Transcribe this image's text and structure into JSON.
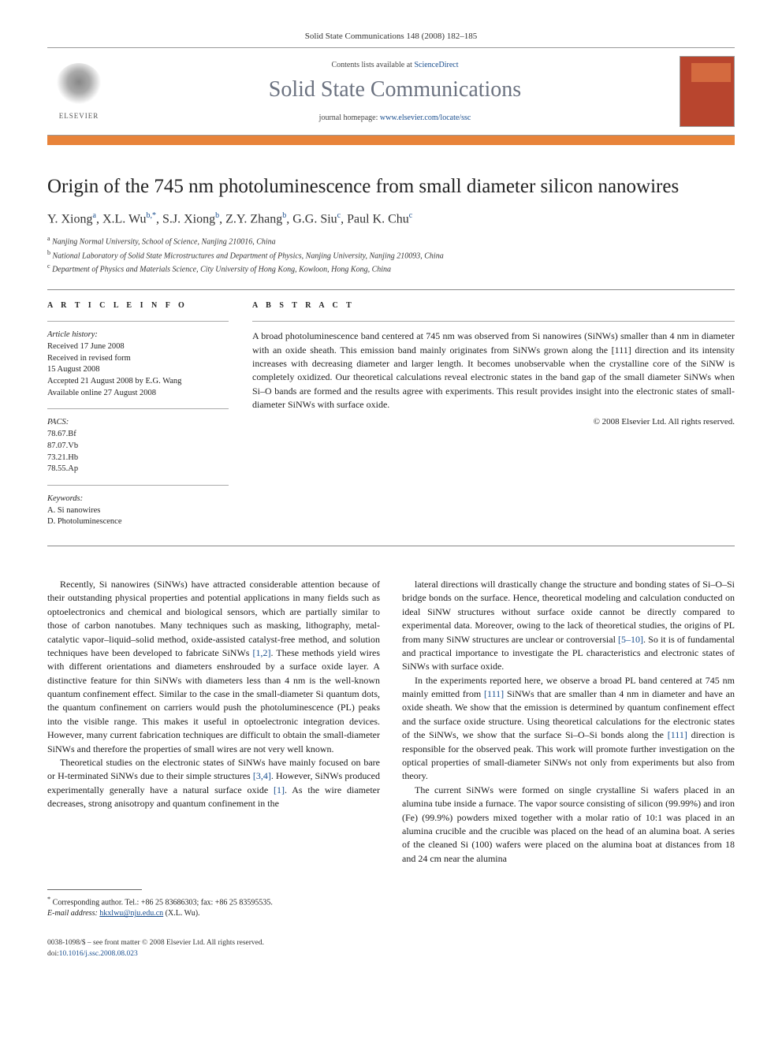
{
  "header": {
    "citation": "Solid State Communications 148 (2008) 182–185",
    "contents_prefix": "Contents lists available at ",
    "contents_link": "ScienceDirect",
    "journal_name": "Solid State Communications",
    "homepage_prefix": "journal homepage: ",
    "homepage_link": "www.elsevier.com/locate/ssc",
    "elsevier_label": "ELSEVIER"
  },
  "title": "Origin of the 745 nm photoluminescence from small diameter silicon nanowires",
  "authors_html": "Y. Xiong<sup>a</sup>, X.L. Wu<sup>b,*</sup>, S.J. Xiong<sup>b</sup>, Z.Y. Zhang<sup>b</sup>, G.G. Siu<sup>c</sup>, Paul K. Chu<sup>c</sup>",
  "affiliations": [
    {
      "sup": "a",
      "text": "Nanjing Normal University, School of Science, Nanjing 210016, China"
    },
    {
      "sup": "b",
      "text": "National Laboratory of Solid State Microstructures and Department of Physics, Nanjing University, Nanjing 210093, China"
    },
    {
      "sup": "c",
      "text": "Department of Physics and Materials Science, City University of Hong Kong, Kowloon, Hong Kong, China"
    }
  ],
  "article_info": {
    "heading": "A R T I C L E   I N F O",
    "history_label": "Article history:",
    "history": [
      "Received 17 June 2008",
      "Received in revised form",
      "15 August 2008",
      "Accepted 21 August 2008 by E.G. Wang",
      "Available online 27 August 2008"
    ],
    "pacs_label": "PACS:",
    "pacs": [
      "78.67.Bf",
      "87.07.Vb",
      "73.21.Hb",
      "78.55.Ap"
    ],
    "keywords_label": "Keywords:",
    "keywords": [
      "A. Si nanowires",
      "D. Photoluminescence"
    ]
  },
  "abstract": {
    "heading": "A B S T R A C T",
    "text": "A broad photoluminescence band centered at 745 nm was observed from Si nanowires (SiNWs) smaller than 4 nm in diameter with an oxide sheath. This emission band mainly originates from SiNWs grown along the [111] direction and its intensity increases with decreasing diameter and larger length. It becomes unobservable when the crystalline core of the SiNW is completely oxidized. Our theoretical calculations reveal electronic states in the band gap of the small diameter SiNWs when Si–O bands are formed and the results agree with experiments. This result provides insight into the electronic states of small-diameter SiNWs with surface oxide.",
    "copyright": "© 2008 Elsevier Ltd. All rights reserved."
  },
  "body": {
    "left": [
      "Recently, Si nanowires (SiNWs) have attracted considerable attention because of their outstanding physical properties and potential applications in many fields such as optoelectronics and chemical and biological sensors, which are partially similar to those of carbon nanotubes. Many techniques such as masking, lithography, metal-catalytic vapor–liquid–solid method, oxide-assisted catalyst-free method, and solution techniques have been developed to fabricate SiNWs [1,2]. These methods yield wires with different orientations and diameters enshrouded by a surface oxide layer. A distinctive feature for thin SiNWs with diameters less than 4 nm is the well-known quantum confinement effect. Similar to the case in the small-diameter Si quantum dots, the quantum confinement on carriers would push the photoluminescence (PL) peaks into the visible range. This makes it useful in optoelectronic integration devices. However, many current fabrication techniques are difficult to obtain the small-diameter SiNWs and therefore the properties of small wires are not very well known.",
      "Theoretical studies on the electronic states of SiNWs have mainly focused on bare or H-terminated SiNWs due to their simple structures [3,4]. However, SiNWs produced experimentally generally have a natural surface oxide [1]. As the wire diameter decreases, strong anisotropy and quantum confinement in the"
    ],
    "right": [
      "lateral directions will drastically change the structure and bonding states of Si–O–Si bridge bonds on the surface. Hence, theoretical modeling and calculation conducted on ideal SiNW structures without surface oxide cannot be directly compared to experimental data. Moreover, owing to the lack of theoretical studies, the origins of PL from many SiNW structures are unclear or controversial [5–10]. So it is of fundamental and practical importance to investigate the PL characteristics and electronic states of SiNWs with surface oxide.",
      "In the experiments reported here, we observe a broad PL band centered at 745 nm mainly emitted from [111] SiNWs that are smaller than 4 nm in diameter and have an oxide sheath. We show that the emission is determined by quantum confinement effect and the surface oxide structure. Using theoretical calculations for the electronic states of the SiNWs, we show that the surface Si–O–Si bonds along the [111] direction is responsible for the observed peak. This work will promote further investigation on the optical properties of small-diameter SiNWs not only from experiments but also from theory.",
      "The current SiNWs were formed on single crystalline Si wafers placed in an alumina tube inside a furnace. The vapor source consisting of silicon (99.99%) and iron (Fe) (99.9%) powders mixed together with a molar ratio of 10:1 was placed in an alumina crucible and the crucible was placed on the head of an alumina boat. A series of the cleaned Si (100) wafers were placed on the alumina boat at distances from 18 and 24 cm near the alumina"
    ]
  },
  "footnote": {
    "corr": "Corresponding author. Tel.: +86 25 83686303; fax: +86 25 83595535.",
    "email_label": "E-mail address:",
    "email": "hkxlwu@nju.edu.cn",
    "email_suffix": "(X.L. Wu)."
  },
  "footer": {
    "line1": "0038-1098/$ – see front matter © 2008 Elsevier Ltd. All rights reserved.",
    "doi_label": "doi:",
    "doi": "10.1016/j.ssc.2008.08.023"
  },
  "colors": {
    "orange_bar": "#e8833a",
    "link": "#1a4f8f",
    "journal_grey": "#6b7280",
    "cover_bg": "#b8452e"
  }
}
